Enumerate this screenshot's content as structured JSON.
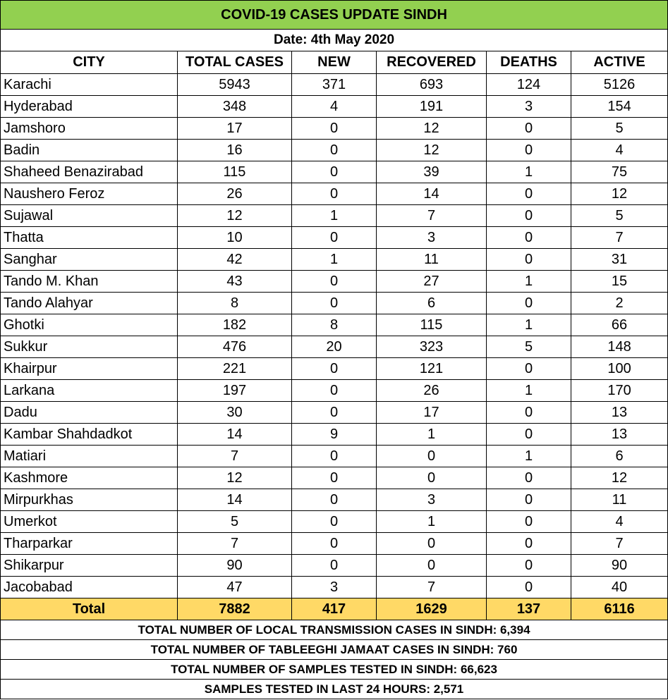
{
  "title": "COVID-19 CASES UPDATE SINDH",
  "date": "Date: 4th May 2020",
  "columns": [
    "CITY",
    "TOTAL CASES",
    "NEW",
    "RECOVERED",
    "DEATHS",
    "ACTIVE"
  ],
  "rows": [
    [
      "Karachi",
      "5943",
      "371",
      "693",
      "124",
      "5126"
    ],
    [
      "Hyderabad",
      "348",
      "4",
      "191",
      "3",
      "154"
    ],
    [
      "Jamshoro",
      "17",
      "0",
      "12",
      "0",
      "5"
    ],
    [
      "Badin",
      "16",
      "0",
      "12",
      "0",
      "4"
    ],
    [
      "Shaheed Benazirabad",
      "115",
      "0",
      "39",
      "1",
      "75"
    ],
    [
      "Naushero Feroz",
      "26",
      "0",
      "14",
      "0",
      "12"
    ],
    [
      "Sujawal",
      "12",
      "1",
      "7",
      "0",
      "5"
    ],
    [
      "Thatta",
      "10",
      "0",
      "3",
      "0",
      "7"
    ],
    [
      "Sanghar",
      "42",
      "1",
      "11",
      "0",
      "31"
    ],
    [
      "Tando M. Khan",
      "43",
      "0",
      "27",
      "1",
      "15"
    ],
    [
      "Tando Alahyar",
      "8",
      "0",
      "6",
      "0",
      "2"
    ],
    [
      "Ghotki",
      "182",
      "8",
      "115",
      "1",
      "66"
    ],
    [
      "Sukkur",
      "476",
      "20",
      "323",
      "5",
      "148"
    ],
    [
      "Khairpur",
      "221",
      "0",
      "121",
      "0",
      "100"
    ],
    [
      "Larkana",
      "197",
      "0",
      "26",
      "1",
      "170"
    ],
    [
      "Dadu",
      "30",
      "0",
      "17",
      "0",
      "13"
    ],
    [
      "Kambar Shahdadkot",
      "14",
      "9",
      "1",
      "0",
      "13"
    ],
    [
      "Matiari",
      "7",
      "0",
      "0",
      "1",
      "6"
    ],
    [
      "Kashmore",
      "12",
      "0",
      "0",
      "0",
      "12"
    ],
    [
      "Mirpurkhas",
      "14",
      "0",
      "3",
      "0",
      "11"
    ],
    [
      "Umerkot",
      "5",
      "0",
      "1",
      "0",
      "4"
    ],
    [
      "Tharparkar",
      "7",
      "0",
      "0",
      "0",
      "7"
    ],
    [
      "Shikarpur",
      "90",
      "0",
      "0",
      "0",
      "90"
    ],
    [
      "Jacobabad",
      "47",
      "3",
      "7",
      "0",
      "40"
    ]
  ],
  "total": [
    "Total",
    "7882",
    "417",
    "1629",
    "137",
    "6116"
  ],
  "summary": [
    "TOTAL NUMBER OF LOCAL TRANSMISSION CASES IN SINDH: 6,394",
    "TOTAL NUMBER OF TABLEEGHI JAMAAT CASES IN SINDH: 760",
    "TOTAL NUMBER OF SAMPLES TESTED IN SINDH: 66,623",
    "SAMPLES TESTED IN LAST 24 HOURS: 2,571"
  ],
  "colors": {
    "title_bg": "#92d050",
    "total_bg": "#ffd966",
    "border": "#000000"
  }
}
